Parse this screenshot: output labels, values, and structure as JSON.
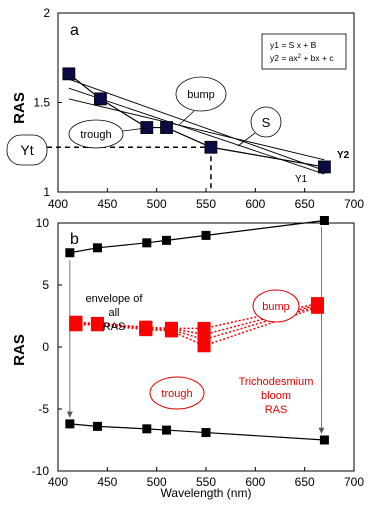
{
  "chart_data": [
    {
      "type": "line",
      "panel_label": "a",
      "ylabel": "RAS",
      "xlim": [
        400,
        700
      ],
      "ylim": [
        1,
        2
      ],
      "x_ticks": [
        "400",
        "450",
        "500",
        "550",
        "600",
        "650",
        "700"
      ],
      "y_ticks": [
        "1",
        "1.5",
        "2"
      ],
      "grid": false,
      "series": [
        {
          "name": "",
          "x": [
            411,
            443,
            490,
            510,
            555,
            670
          ],
          "y": [
            1.66,
            1.52,
            1.36,
            1.36,
            1.25,
            1.14
          ],
          "marker": "square",
          "color": "#0a0a46"
        }
      ],
      "fit_lines": [
        {
          "x": [
            411,
            670
          ],
          "y": [
            1.58,
            1.1
          ]
        },
        {
          "x": [
            411,
            670
          ],
          "y": [
            1.52,
            1.18
          ]
        },
        {
          "x": [
            411,
            670
          ],
          "y": [
            1.63,
            1.12
          ]
        }
      ],
      "legend_box": {
        "line1": "y1 = S x + B",
        "line2_a": "y2 = ax",
        "line2_sup": "2",
        "line2_b": " + bx + c"
      },
      "annotations": {
        "bump": "bump",
        "s": "S",
        "trough": "trough",
        "yt": "Yt",
        "y1": "Y1",
        "y2": "Y2"
      },
      "guide": {
        "yt_value": 1.25,
        "x_value": 555
      }
    },
    {
      "type": "line",
      "panel_label": "b",
      "ylabel": "RAS",
      "xlabel": "Wavelength (nm)",
      "xlim": [
        400,
        700
      ],
      "ylim": [
        -10,
        10
      ],
      "x_ticks": [
        "400",
        "450",
        "500",
        "550",
        "600",
        "650",
        "700"
      ],
      "y_ticks": [
        "10",
        "5",
        "0",
        "-5",
        "-10"
      ],
      "grid": false,
      "envelope_upper": {
        "x": [
          412,
          440,
          490,
          510,
          550,
          670
        ],
        "y": [
          7.6,
          8.0,
          8.4,
          8.6,
          9.0,
          10.2
        ]
      },
      "envelope_lower": {
        "x": [
          412,
          440,
          490,
          510,
          550,
          670
        ],
        "y": [
          -6.2,
          -6.4,
          -6.6,
          -6.7,
          -6.9,
          -7.5
        ]
      },
      "trichodesmium_series": [
        {
          "x": [
            418,
            440,
            489,
            515,
            548,
            663
          ],
          "y": [
            2.0,
            1.9,
            1.6,
            1.5,
            1.5,
            3.5
          ]
        },
        {
          "x": [
            418,
            440,
            489,
            515,
            548,
            663
          ],
          "y": [
            1.9,
            1.9,
            1.5,
            1.5,
            1.0,
            3.4
          ]
        },
        {
          "x": [
            418,
            440,
            489,
            515,
            548,
            663
          ],
          "y": [
            1.8,
            1.8,
            1.5,
            1.4,
            0.6,
            3.3
          ]
        },
        {
          "x": [
            418,
            440,
            489,
            515,
            548,
            663
          ],
          "y": [
            1.8,
            1.8,
            1.4,
            1.3,
            0.1,
            3.2
          ]
        }
      ],
      "arrows": [
        {
          "x": 412,
          "from": 7.0,
          "to": -5.7
        },
        {
          "x": 667,
          "from": 9.7,
          "to": -7.0
        }
      ],
      "annotations": {
        "envelope": [
          "envelope of",
          "all",
          "RAS"
        ],
        "bump": "bump",
        "trough": "trough",
        "tricho": [
          "Trichodesmium",
          "bloom",
          "RAS"
        ]
      },
      "colors": {
        "envelope": "#000000",
        "tricho": "#ff0000"
      }
    }
  ]
}
